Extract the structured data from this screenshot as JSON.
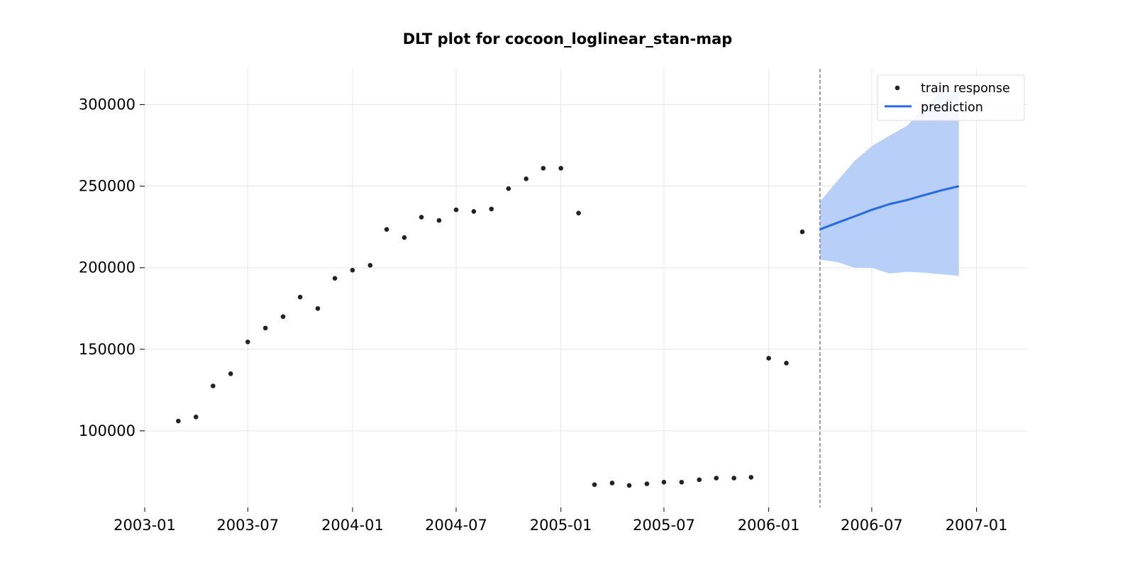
{
  "chart_data": {
    "type": "scatter",
    "title": "DLT plot for cocoon_loglinear_stan-map",
    "xlabel": "",
    "ylabel": "",
    "xlim": [
      "2003-01-01",
      "2007-03-31"
    ],
    "ylim": [
      53000,
      322000
    ],
    "x_ticks": [
      "2003-01",
      "2003-07",
      "2004-01",
      "2004-07",
      "2005-01",
      "2005-07",
      "2006-01",
      "2006-07",
      "2007-01"
    ],
    "y_ticks": [
      100000,
      150000,
      200000,
      250000,
      300000
    ],
    "grid": true,
    "legend_position": "top-right",
    "split_date": "2006-04-01",
    "colors": {
      "train_response": "#222222",
      "prediction": "#2469e8",
      "prediction_band": "#b8cff7",
      "split_line": "#808080"
    },
    "series": [
      {
        "name": "train response",
        "kind": "scatter",
        "points": [
          {
            "x": "2003-03-01",
            "y": 106000
          },
          {
            "x": "2003-04-01",
            "y": 108500
          },
          {
            "x": "2003-05-01",
            "y": 127500
          },
          {
            "x": "2003-06-01",
            "y": 135000
          },
          {
            "x": "2003-07-01",
            "y": 154500
          },
          {
            "x": "2003-08-01",
            "y": 163000
          },
          {
            "x": "2003-09-01",
            "y": 170000
          },
          {
            "x": "2003-10-01",
            "y": 182000
          },
          {
            "x": "2003-11-01",
            "y": 175000
          },
          {
            "x": "2003-12-01",
            "y": 193500
          },
          {
            "x": "2004-01-01",
            "y": 198500
          },
          {
            "x": "2004-02-01",
            "y": 201500
          },
          {
            "x": "2004-03-01",
            "y": 223500
          },
          {
            "x": "2004-04-01",
            "y": 218500
          },
          {
            "x": "2004-05-01",
            "y": 231000
          },
          {
            "x": "2004-06-01",
            "y": 229000
          },
          {
            "x": "2004-07-01",
            "y": 235500
          },
          {
            "x": "2004-08-01",
            "y": 234500
          },
          {
            "x": "2004-09-01",
            "y": 236000
          },
          {
            "x": "2004-10-01",
            "y": 248500
          },
          {
            "x": "2004-11-01",
            "y": 254500
          },
          {
            "x": "2004-12-01",
            "y": 261000
          },
          {
            "x": "2005-01-01",
            "y": 261000
          },
          {
            "x": "2005-02-01",
            "y": 233500
          },
          {
            "x": "2005-03-01",
            "y": 67000
          },
          {
            "x": "2005-04-01",
            "y": 68000
          },
          {
            "x": "2005-05-01",
            "y": 66500
          },
          {
            "x": "2005-06-01",
            "y": 67500
          },
          {
            "x": "2005-07-01",
            "y": 68500
          },
          {
            "x": "2005-08-01",
            "y": 68500
          },
          {
            "x": "2005-09-01",
            "y": 70000
          },
          {
            "x": "2005-10-01",
            "y": 71000
          },
          {
            "x": "2005-11-01",
            "y": 71000
          },
          {
            "x": "2005-12-01",
            "y": 71500
          },
          {
            "x": "2006-01-01",
            "y": 144500
          },
          {
            "x": "2006-02-01",
            "y": 141500
          },
          {
            "x": "2006-03-01",
            "y": 222000
          }
        ]
      },
      {
        "name": "prediction",
        "kind": "line",
        "points": [
          {
            "x": "2006-04-01",
            "y": 223500,
            "lower": 205000,
            "upper": 240500
          },
          {
            "x": "2006-05-01",
            "y": 227500,
            "lower": 203500,
            "upper": 253000
          },
          {
            "x": "2006-06-01",
            "y": 231500,
            "lower": 200000,
            "upper": 265500
          },
          {
            "x": "2006-07-01",
            "y": 235500,
            "lower": 200000,
            "upper": 274500
          },
          {
            "x": "2006-08-01",
            "y": 239000,
            "lower": 196500,
            "upper": 281000
          },
          {
            "x": "2006-09-01",
            "y": 241500,
            "lower": 197500,
            "upper": 287000
          },
          {
            "x": "2006-10-01",
            "y": 244500,
            "lower": 197000,
            "upper": 298000
          },
          {
            "x": "2006-11-01",
            "y": 247500,
            "lower": 196000,
            "upper": 309000
          },
          {
            "x": "2006-12-01",
            "y": 250000,
            "lower": 195000,
            "upper": 309500
          }
        ]
      }
    ]
  }
}
